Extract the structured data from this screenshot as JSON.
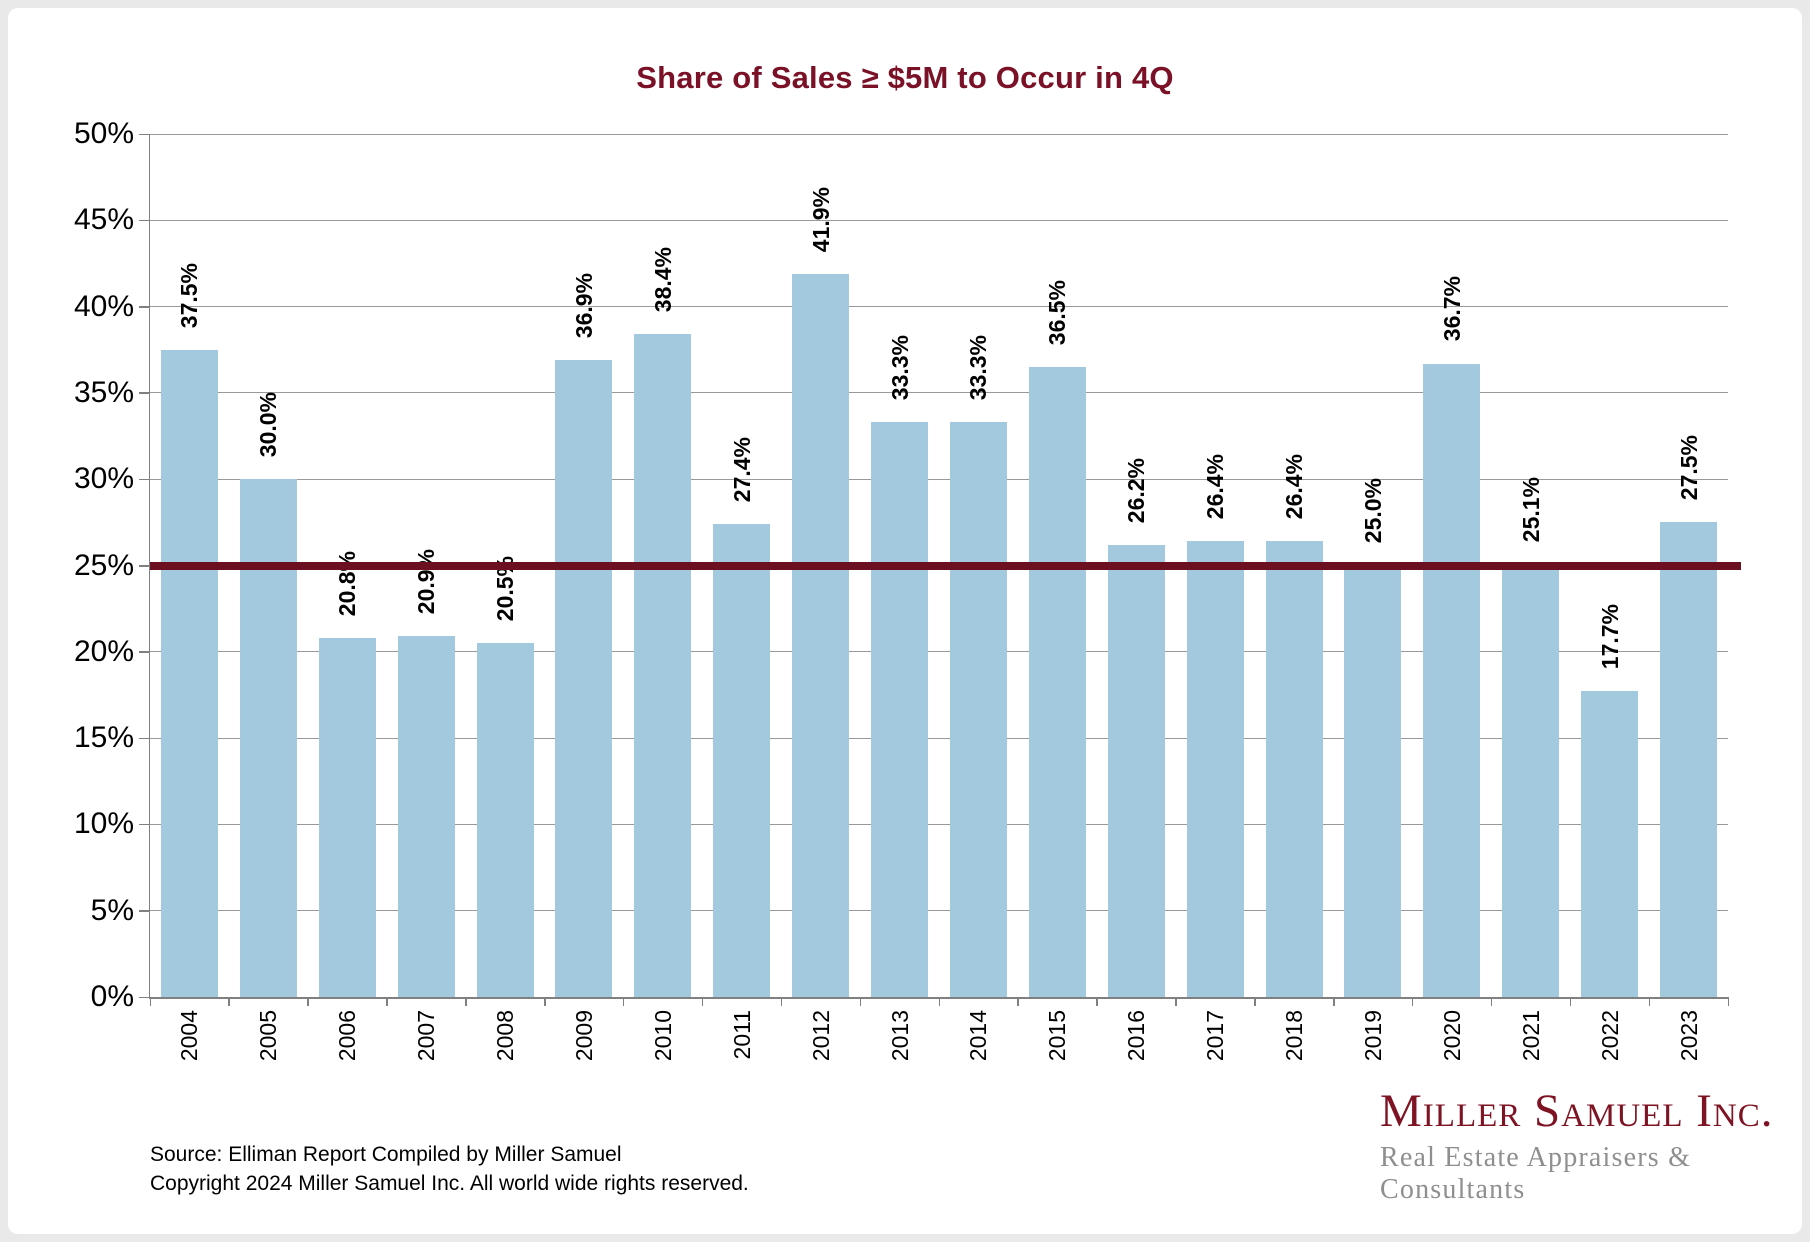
{
  "page": {
    "background": "#e9e9e9",
    "card_background": "#ffffff"
  },
  "chart_data": {
    "type": "bar",
    "title": "Share of Sales ≥ $5M to Occur in 4Q",
    "title_color": "#7a1126",
    "categories": [
      "2004",
      "2005",
      "2006",
      "2007",
      "2008",
      "2009",
      "2010",
      "2011",
      "2012",
      "2013",
      "2014",
      "2015",
      "2016",
      "2017",
      "2018",
      "2019",
      "2020",
      "2021",
      "2022",
      "2023"
    ],
    "values": [
      37.5,
      30.0,
      20.8,
      20.9,
      20.5,
      36.9,
      38.4,
      27.4,
      41.9,
      33.3,
      33.3,
      36.5,
      26.2,
      26.4,
      26.4,
      25.0,
      36.7,
      25.1,
      17.7,
      27.5
    ],
    "value_labels": [
      "37.5%",
      "30.0%",
      "20.8%",
      "20.9%",
      "20.5%",
      "36.9%",
      "38.4%",
      "27.4%",
      "41.9%",
      "33.3%",
      "33.3%",
      "36.5%",
      "26.2%",
      "26.4%",
      "26.4%",
      "25.0%",
      "36.7%",
      "25.1%",
      "17.7%",
      "27.5%"
    ],
    "xlabel": "",
    "ylabel": "",
    "ylim": [
      0,
      50
    ],
    "ytick_step": 5,
    "ytick_labels": [
      "0%",
      "5%",
      "10%",
      "15%",
      "20%",
      "25%",
      "30%",
      "35%",
      "40%",
      "45%",
      "50%"
    ],
    "grid": true,
    "legend": "none",
    "bar_color": "#a3c9de",
    "gridline_color": "#999999",
    "axis_color": "#808080",
    "label_color": "#000000",
    "reference_line": {
      "value": 25,
      "color": "#6b0f21"
    }
  },
  "footer": {
    "source_line1": "Source: Elliman Report Compiled by Miller Samuel",
    "source_line2": "Copyright 2024 Miller Samuel Inc.  All world wide rights reserved."
  },
  "logo": {
    "name": "Miller Samuel Inc.",
    "subtitle": "Real Estate Appraisers & Consultants",
    "name_color": "#7e1323",
    "subtitle_color": "#8f8f8f"
  }
}
